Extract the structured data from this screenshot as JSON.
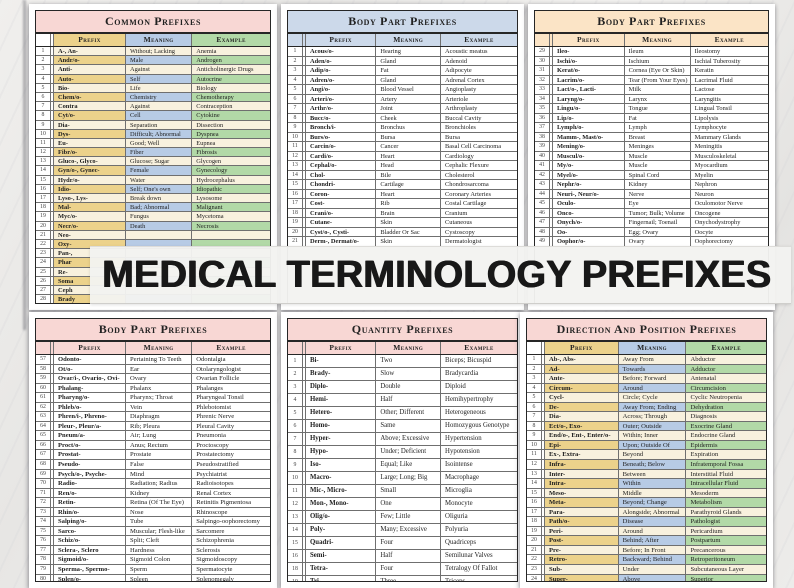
{
  "banner": {
    "title": "MEDICAL TERMINOLOGY PREFIXES"
  },
  "palette": {
    "pink": "#f8d7d4",
    "blue": "#ccd9ea",
    "peach": "#fbe4c6",
    "gold": "#ecd28b",
    "bluecell": "#b7cbe5",
    "greencell": "#b2d9a7",
    "cream": "#f8f1de",
    "banner_bg": "#f3f2f0",
    "banner_text": "#181818"
  },
  "tables": [
    {
      "title": "Common Prefixes",
      "columns": [
        "Prefix",
        "Meaning",
        "Example"
      ],
      "rows": [
        [
          "1",
          "A-, An-",
          "Without; Lacking",
          "Anemia"
        ],
        [
          "2",
          "Andr/o-",
          "Male",
          "Androgen"
        ],
        [
          "3",
          "Anti-",
          "Against",
          "Anticholinergic Drugs"
        ],
        [
          "4",
          "Auto-",
          "Self",
          "Autocrine"
        ],
        [
          "5",
          "Bio-",
          "Life",
          "Biology"
        ],
        [
          "6",
          "Chem/o-",
          "Chemistry",
          "Chemotherapy"
        ],
        [
          "7",
          "Contra",
          "Against",
          "Contraception"
        ],
        [
          "8",
          "Cyt/o-",
          "Cell",
          "Cytokine"
        ],
        [
          "9",
          "Dia-",
          "Separation",
          "Dissection"
        ],
        [
          "10",
          "Dys-",
          "Difficult; Abnormal",
          "Dyspnea"
        ],
        [
          "11",
          "Eu-",
          "Good; Well",
          "Eupnea"
        ],
        [
          "12",
          "Fibr/o-",
          "Fiber",
          "Fibrosis"
        ],
        [
          "13",
          "Gluco-, Glyco-",
          "Glucose; Sugar",
          "Glycogen"
        ],
        [
          "14",
          "Gyn/o-, Gynec-",
          "Female",
          "Gynecology"
        ],
        [
          "15",
          "Hydr/o-",
          "Water",
          "Hydrocephalus"
        ],
        [
          "16",
          "Idio-",
          "Self; One's own",
          "Idiopathic"
        ],
        [
          "17",
          "Lyso-, Lys-",
          "Break down",
          "Lysosome"
        ],
        [
          "18",
          "Mal-",
          "Bad; Abnormal",
          "Malignant"
        ],
        [
          "19",
          "Myc/o-",
          "Fungus",
          "Mycetoma"
        ],
        [
          "20",
          "Necr/o-",
          "Death",
          "Necrosis"
        ],
        [
          "21",
          "Neo-",
          "",
          ""
        ],
        [
          "22",
          "Oxy-",
          "",
          ""
        ],
        [
          "23",
          "Pan-,",
          "",
          ""
        ],
        [
          "24",
          "Phar",
          "",
          ""
        ],
        [
          "25",
          "Re-",
          "",
          ""
        ],
        [
          "26",
          "Soma",
          "",
          ""
        ],
        [
          "27",
          "Ceph",
          "",
          ""
        ],
        [
          "28",
          "Brady",
          "",
          ""
        ]
      ]
    },
    {
      "title": "Body Part Prefixes",
      "columns": [
        "Prefix",
        "Meaning",
        "Example"
      ],
      "rows": [
        [
          "1",
          "Acous/o-",
          "Hearing",
          "Acoustic meatus"
        ],
        [
          "2",
          "Aden/o-",
          "Gland",
          "Adenoid"
        ],
        [
          "3",
          "Adip/o-",
          "Fat",
          "Adipocyte"
        ],
        [
          "4",
          "Adren/o-",
          "Gland",
          "Adrenal Cortex"
        ],
        [
          "5",
          "Angi/o-",
          "Blood Vessel",
          "Angioplasty"
        ],
        [
          "6",
          "Arteri/o-",
          "Artery",
          "Arteriole"
        ],
        [
          "7",
          "Arthr/o-",
          "Joint",
          "Arthroplasty"
        ],
        [
          "8",
          "Bucc/o-",
          "Cheek",
          "Buccal Cavity"
        ],
        [
          "9",
          "Bronch/i-",
          "Bronchus",
          "Bronchioles"
        ],
        [
          "10",
          "Burs/o-",
          "Bursa",
          "Bursa"
        ],
        [
          "11",
          "Carcin/o-",
          "Cancer",
          "Basal Cell Carcinoma"
        ],
        [
          "12",
          "Cardi/o-",
          "Heart",
          "Cardiology"
        ],
        [
          "13",
          "Cephal/o-",
          "Head",
          "Cephalic Flexure"
        ],
        [
          "14",
          "Chol-",
          "Bile",
          "Cholesterol"
        ],
        [
          "15",
          "Chondri-",
          "Cartilage",
          "Chondrosarcoma"
        ],
        [
          "16",
          "Coron-",
          "Heart",
          "Coronary Arteries"
        ],
        [
          "17",
          "Cost-",
          "Rib",
          "Costal Cartilage"
        ],
        [
          "18",
          "Crani/o-",
          "Brain",
          "Cranium"
        ],
        [
          "19",
          "Cutane-",
          "Skin",
          "Cutaneous"
        ],
        [
          "20",
          "Cyst/o-, Cysti-",
          "Bladder Or Sac",
          "Cystoscopy"
        ],
        [
          "21",
          "Derm-, Dermat/o-",
          "Skin",
          "Dermatologist"
        ]
      ]
    },
    {
      "title": "Body Part Prefixes",
      "columns": [
        "Prefix",
        "Meaning",
        "Example"
      ],
      "rows": [
        [
          "29",
          "Ileo-",
          "Ileum",
          "Ileostomy"
        ],
        [
          "30",
          "Ischi/o-",
          "Ischium",
          "Ischial Tuberosity"
        ],
        [
          "31",
          "Kerat/o-",
          "Cornea (Eye Or Skin)",
          "Keratin"
        ],
        [
          "32",
          "Lacrim/o-",
          "Tear (From Your Eyes)",
          "Lacrimal Fluid"
        ],
        [
          "33",
          "Lact/o-, Lacti-",
          "Milk",
          "Lactose"
        ],
        [
          "34",
          "Laryng/o-",
          "Larynx",
          "Laryngitis"
        ],
        [
          "35",
          "Lingu/o-",
          "Tongue",
          "Lingual Tonsil"
        ],
        [
          "36",
          "Lip/o-",
          "Fat",
          "Lipolysis"
        ],
        [
          "37",
          "Lymph/o-",
          "Lymph",
          "Lymphocyte"
        ],
        [
          "38",
          "Mamm-, Mast/o-",
          "Breast",
          "Mammary Glands"
        ],
        [
          "39",
          "Mening/o-",
          "Meninges",
          "Meningitis"
        ],
        [
          "40",
          "Muscul/o-",
          "Muscle",
          "Musculoskeletal"
        ],
        [
          "41",
          "My/o-",
          "Muscle",
          "Myocardium"
        ],
        [
          "42",
          "Myel/o-",
          "Spinal Cord",
          "Myelin"
        ],
        [
          "43",
          "Nephr/o-",
          "Kidney",
          "Nephron"
        ],
        [
          "44",
          "Neuri-, Neur/o-",
          "Nerve",
          "Neuron"
        ],
        [
          "45",
          "Oculo-",
          "Eye",
          "Oculomotor Nerve"
        ],
        [
          "46",
          "Onco-",
          "Tumor; Bulk; Volume",
          "Oncogene"
        ],
        [
          "47",
          "Onych/o-",
          "Fingernail; Toenail",
          "Onychodystrophy"
        ],
        [
          "48",
          "Oo-",
          "Egg; Ovary",
          "Oocyte"
        ],
        [
          "49",
          "Oophor/o-",
          "Ovary",
          "Oophorectomy"
        ]
      ]
    },
    {
      "title": "Body Part Prefixes",
      "columns": [
        "Prefix",
        "Meaning",
        "Example"
      ],
      "rows": [
        [
          "57",
          "Odonto-",
          "Pertaining To Teeth",
          "Odontalgia"
        ],
        [
          "58",
          "Ot/o-",
          "Ear",
          "Otolaryngologist"
        ],
        [
          "59",
          "Ovar/i-, Ovario-, Ovi-",
          "Ovary",
          "Ovarian Follicle"
        ],
        [
          "60",
          "Phalang-",
          "Phalanx",
          "Phalanges"
        ],
        [
          "61",
          "Pharyng/o-",
          "Pharynx; Throat",
          "Pharyngeal Tonsil"
        ],
        [
          "62",
          "Phleb/o-",
          "Vein",
          "Phlebotomist"
        ],
        [
          "63",
          "Phren/i-, Phreno-",
          "Diaphragm",
          "Phrenic Nerve"
        ],
        [
          "64",
          "Pleur-, Pleur/a-",
          "Rib; Pleura",
          "Pleural Cavity"
        ],
        [
          "65",
          "Pneum/a-",
          "Air; Lung",
          "Pneumonia"
        ],
        [
          "66",
          "Proct/o-",
          "Anus; Rectum",
          "Proctoscopy"
        ],
        [
          "67",
          "Prostat-",
          "Prostate",
          "Prostatectomy"
        ],
        [
          "68",
          "Pseudo-",
          "False",
          "Pseudostratified"
        ],
        [
          "69",
          "Psych/o-, Psyche-",
          "Mind",
          "Psychiatrist"
        ],
        [
          "70",
          "Radio-",
          "Radiation; Radius",
          "Radioisotopes"
        ],
        [
          "71",
          "Ren/o-",
          "Kidney",
          "Renal Cortex"
        ],
        [
          "72",
          "Retin-",
          "Retina (Of The Eye)",
          "Retinitis Pigmentosa"
        ],
        [
          "73",
          "Rhin/o-",
          "Nose",
          "Rhinoscope"
        ],
        [
          "74",
          "Salping/o-",
          "Tube",
          "Salpingo-oophorectomy"
        ],
        [
          "75",
          "Sarco-",
          "Muscular; Flesh-like",
          "Sarcomere"
        ],
        [
          "76",
          "Schiz/o-",
          "Split; Cleft",
          "Schizophrenia"
        ],
        [
          "77",
          "Sclera-, Sclero",
          "Hardness",
          "Sclerosis"
        ],
        [
          "78",
          "Sigmoid/o-",
          "Sigmoid Colon",
          "Sigmoidoscopy"
        ],
        [
          "79",
          "Sperma-, Spermo-",
          "Sperm",
          "Spermatocyte"
        ],
        [
          "80",
          "Splen/o-",
          "Spleen",
          "Splenomegaly"
        ],
        [
          "81",
          "Sten/o-",
          "Narrowed; Blocked",
          "Stenosis"
        ]
      ]
    },
    {
      "title": "Quantity Prefixes",
      "columns": [
        "Prefix",
        "Meaning",
        "Example"
      ],
      "rows": [
        [
          "1",
          "Bi-",
          "Two",
          "Biceps; Bicuspid"
        ],
        [
          "2",
          "Brady-",
          "Slow",
          "Bradycardia"
        ],
        [
          "3",
          "Diplo-",
          "Double",
          "Diploid"
        ],
        [
          "4",
          "Hemi-",
          "Half",
          "Hemihypertrophy"
        ],
        [
          "5",
          "Hetero-",
          "Other; Different",
          "Heterogeneous"
        ],
        [
          "6",
          "Homo-",
          "Same",
          "Homozygous Genotype"
        ],
        [
          "7",
          "Hyper-",
          "Above; Excessive",
          "Hypertension"
        ],
        [
          "8",
          "Hypo-",
          "Under; Deficient",
          "Hypotension"
        ],
        [
          "9",
          "Iso-",
          "Equal; Like",
          "Isointense"
        ],
        [
          "10",
          "Macro-",
          "Large; Long; Big",
          "Macrophage"
        ],
        [
          "11",
          "Mic-, Micro-",
          "Small",
          "Microglia"
        ],
        [
          "12",
          "Mon-, Mono-",
          "One",
          "Monocyte"
        ],
        [
          "13",
          "Olig/o-",
          "Few; Little",
          "Oliguria"
        ],
        [
          "14",
          "Poly-",
          "Many; Excessive",
          "Polyuria"
        ],
        [
          "15",
          "Quadri-",
          "Four",
          "Quadriceps"
        ],
        [
          "16",
          "Semi-",
          "Half",
          "Semilunar Valves"
        ],
        [
          "18",
          "Tetra-",
          "Four",
          "Tetralogy Of Fallot"
        ],
        [
          "19",
          "Tri-",
          "Three",
          "Triceps"
        ]
      ]
    },
    {
      "title": "Direction And Position Prefixes",
      "columns": [
        "Prefix",
        "Meaning",
        "Example"
      ],
      "rows": [
        [
          "1",
          "Ab-, Abs-",
          "Away From",
          "Abductor"
        ],
        [
          "2",
          "Ad-",
          "Towards",
          "Adductor"
        ],
        [
          "3",
          "Ante-",
          "Before; Forward",
          "Antenatal"
        ],
        [
          "4",
          "Circum-",
          "Around",
          "Circumcision"
        ],
        [
          "5",
          "Cycl-",
          "Circle; Cycle",
          "Cyclic Neutropenia"
        ],
        [
          "6",
          "De-",
          "Away From; Ending",
          "Dehydration"
        ],
        [
          "7",
          "Dia-",
          "Across; Through",
          "Diagnosis"
        ],
        [
          "8",
          "Ect/o-, Exo-",
          "Outer; Outside",
          "Exocrine Gland"
        ],
        [
          "9",
          "End/o-, Ent-, Enter/o-",
          "Within; Inner",
          "Endocrine Gland"
        ],
        [
          "10",
          "Epi-",
          "Upon; Outside Of",
          "Epidermis"
        ],
        [
          "11",
          "Ex-, Extra-",
          "Beyond",
          "Expiration"
        ],
        [
          "12",
          "Infra-",
          "Beneath; Below",
          "Infratemporal Fossa"
        ],
        [
          "13",
          "Inter-",
          "Between",
          "Interstitial Fluid"
        ],
        [
          "14",
          "Intra-",
          "Within",
          "Intracellular Fluid"
        ],
        [
          "15",
          "Meso-",
          "Middle",
          "Mesoderm"
        ],
        [
          "16",
          "Meta-",
          "Beyond; Change",
          "Metabolism"
        ],
        [
          "17",
          "Para-",
          "Alongside; Abnormal",
          "Parathyroid Glands"
        ],
        [
          "18",
          "Path/o-",
          "Disease",
          "Pathologist"
        ],
        [
          "19",
          "Peri-",
          "Around",
          "Pericardium"
        ],
        [
          "20",
          "Post-",
          "Behind; After",
          "Postpartum"
        ],
        [
          "21",
          "Pre-",
          "Before; In Front",
          "Precancerous"
        ],
        [
          "22",
          "Retro-",
          "Backward; Behind",
          "Retroperitoneum"
        ],
        [
          "23",
          "Sub-",
          "Under",
          "Subcutaneous Layer"
        ],
        [
          "24",
          "Super-",
          "Above",
          "Superior"
        ],
        [
          "25",
          "Supra-",
          "Above; Upon",
          "Supraglottis"
        ]
      ]
    }
  ]
}
